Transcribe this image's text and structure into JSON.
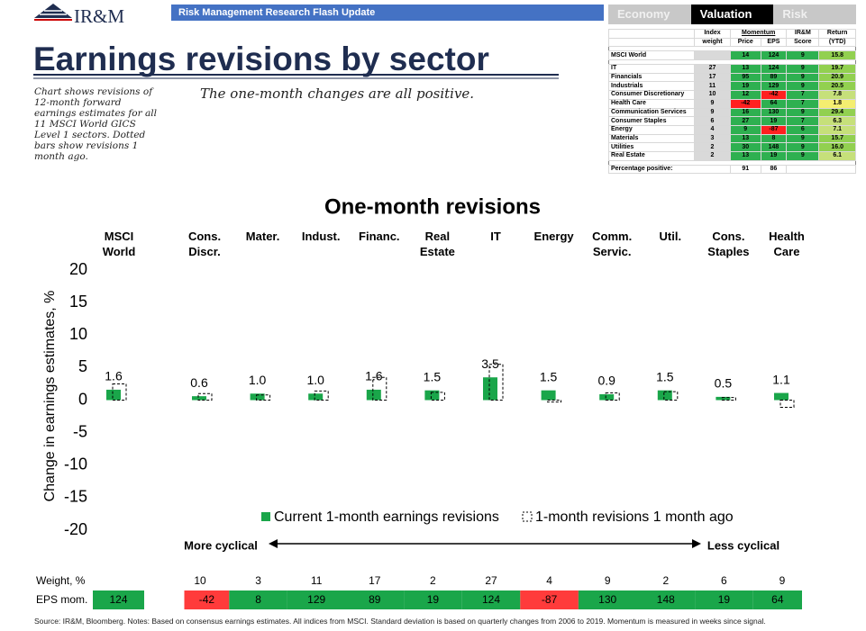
{
  "header": {
    "logo": "IR&M",
    "banner": "Risk Management Research Flash Update",
    "title": "Earnings revisions by sector",
    "note": "Chart shows revisions of 12-month forward earnings estimates for all 11 MSCI World GICS Level 1 sectors. Dotted bars show revisions 1 month ago.",
    "subtitle": "The one-month changes are all positive."
  },
  "tabs": [
    "Economy",
    "Valuation",
    "Risk"
  ],
  "table": {
    "header_rows": [
      [
        "Index",
        "Momentum",
        "IR&M",
        "Return"
      ],
      [
        "weight",
        "Price",
        "EPS",
        "Score",
        "(YTD)"
      ]
    ],
    "rows": [
      [
        "MSCI World",
        "",
        "14",
        "124",
        "9",
        "15.8"
      ],
      [
        "IT",
        "27",
        "13",
        "124",
        "9",
        "19.7"
      ],
      [
        "Financials",
        "17",
        "95",
        "89",
        "9",
        "20.9"
      ],
      [
        "Industrials",
        "11",
        "19",
        "129",
        "9",
        "20.5"
      ],
      [
        "Consumer Discretionary",
        "10",
        "12",
        "-42",
        "7",
        "7.8"
      ],
      [
        "Health Care",
        "9",
        "-42",
        "64",
        "7",
        "1.8"
      ],
      [
        "Communication Services",
        "9",
        "16",
        "130",
        "9",
        "29.4"
      ],
      [
        "Consumer Staples",
        "6",
        "27",
        "19",
        "7",
        "6.3"
      ],
      [
        "Energy",
        "4",
        "9",
        "-87",
        "6",
        "7.1"
      ],
      [
        "Materials",
        "3",
        "13",
        "8",
        "9",
        "15.7"
      ],
      [
        "Utilities",
        "2",
        "30",
        "148",
        "9",
        "16.0"
      ],
      [
        "Real Estate",
        "2",
        "13",
        "19",
        "9",
        "6.1"
      ]
    ],
    "footer": [
      "Percentage positive:",
      "91",
      "86"
    ]
  },
  "chart_data": {
    "type": "bar",
    "title": "One-month revisions",
    "y_label": "Change in earnings estimates, %",
    "categories": [
      "MSCI World",
      "Cons. Discr.",
      "Mater.",
      "Indust.",
      "Financ.",
      "Real Estate",
      "IT",
      "Energy",
      "Comm. Servic.",
      "Util.",
      "Cons. Staples",
      "Health Care"
    ],
    "series": [
      {
        "name": "Current 1-month earnings revisions",
        "color": "#1aa64a",
        "style": "filled",
        "values": [
          1.6,
          0.6,
          1.0,
          1.0,
          1.6,
          1.5,
          3.5,
          1.5,
          0.9,
          1.5,
          0.5,
          1.1
        ],
        "value_labels": [
          "1.6",
          "0.6",
          "1.0",
          "1.0",
          "1.6",
          "1.5",
          "3.5",
          "1.5",
          "0.9",
          "1.5",
          "0.5",
          "1.1"
        ]
      },
      {
        "name": "1-month revisions 1 month ago",
        "color": "#000000",
        "style": "dashed",
        "values": [
          2.5,
          1.0,
          0.8,
          1.4,
          3.5,
          1.2,
          5.5,
          -0.3,
          1.1,
          1.3,
          0.4,
          -1.1
        ]
      }
    ],
    "ylim": [
      -20,
      20
    ],
    "yticks": [
      -20,
      -15,
      -10,
      -5,
      0,
      5,
      10,
      15,
      20
    ],
    "grid": false,
    "annotations": [
      "More cyclical",
      "Less cyclical"
    ]
  },
  "bottom_rows": {
    "weight_label": "Weight, %",
    "weights": [
      null,
      10,
      3,
      11,
      17,
      2,
      27,
      4,
      9,
      2,
      6,
      9
    ],
    "eps_label": "EPS mom.",
    "eps": [
      124,
      -42,
      8,
      129,
      89,
      19,
      124,
      -87,
      130,
      148,
      19,
      64
    ]
  },
  "footnote": "Source: IR&M, Bloomberg. Notes: Based on consensus earnings estimates. All indices from MSCI. Standard deviation is based on quarterly changes from 2006 to 2019. Momentum is measured in weeks since signal."
}
